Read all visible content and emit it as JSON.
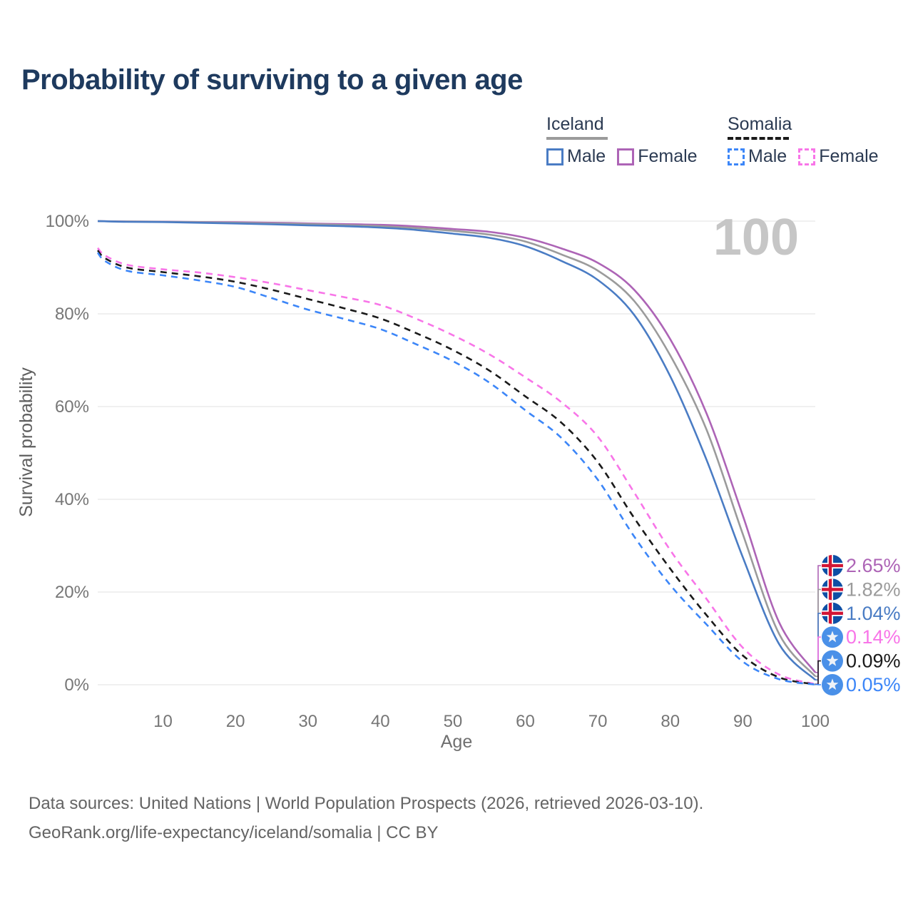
{
  "title": "Probability of surviving to a given age",
  "watermark": "100",
  "legend": {
    "groups": [
      {
        "country": "Iceland",
        "line_style": "solid",
        "underline_color": "#9b9b9b",
        "items": [
          {
            "label": "Male",
            "color": "#4a7cc4",
            "dashed": false
          },
          {
            "label": "Female",
            "color": "#ad64b6",
            "dashed": false
          }
        ]
      },
      {
        "country": "Somalia",
        "line_style": "dashed",
        "underline_color": "#1a1a1a",
        "items": [
          {
            "label": "Male",
            "color": "#3c86f8",
            "dashed": true
          },
          {
            "label": "Female",
            "color": "#f875e8",
            "dashed": true
          }
        ]
      }
    ]
  },
  "chart_data": {
    "type": "line",
    "title": "Probability of surviving to a given age",
    "xlabel": "Age",
    "ylabel": "Survival probability",
    "xlim": [
      1,
      100
    ],
    "ylim": [
      0,
      100
    ],
    "grid": "horizontal",
    "legend_position": "top-right",
    "x_ticks": [
      10,
      20,
      30,
      40,
      50,
      60,
      70,
      80,
      90,
      100
    ],
    "y_ticks": [
      {
        "label": "0%",
        "value": 0
      },
      {
        "label": "20%",
        "value": 20
      },
      {
        "label": "40%",
        "value": 40
      },
      {
        "label": "60%",
        "value": 60
      },
      {
        "label": "80%",
        "value": 80
      },
      {
        "label": "100%",
        "value": 100
      }
    ],
    "series": [
      {
        "name": "Iceland Female",
        "country": "Iceland",
        "sex": "Female",
        "color": "#ad64b6",
        "dashed": false,
        "flag": "iceland",
        "end_label": "2.65%",
        "points": [
          [
            1,
            100
          ],
          [
            5,
            99.92
          ],
          [
            10,
            99.88
          ],
          [
            15,
            99.8
          ],
          [
            20,
            99.75
          ],
          [
            25,
            99.65
          ],
          [
            30,
            99.5
          ],
          [
            35,
            99.35
          ],
          [
            40,
            99.2
          ],
          [
            45,
            98.85
          ],
          [
            50,
            98.3
          ],
          [
            55,
            97.7
          ],
          [
            60,
            96.4
          ],
          [
            65,
            94.1
          ],
          [
            70,
            91.0
          ],
          [
            75,
            85.2
          ],
          [
            80,
            74.5
          ],
          [
            85,
            58.5
          ],
          [
            90,
            36.5
          ],
          [
            95,
            13.5
          ],
          [
            100,
            2.65
          ]
        ]
      },
      {
        "name": "Iceland Both sexes",
        "country": "Iceland",
        "sex": "Both",
        "color": "#9b9b9b",
        "dashed": false,
        "flag": "iceland",
        "end_label": "1.82%",
        "points": [
          [
            1,
            100
          ],
          [
            5,
            99.9
          ],
          [
            10,
            99.85
          ],
          [
            15,
            99.75
          ],
          [
            20,
            99.65
          ],
          [
            25,
            99.5
          ],
          [
            30,
            99.35
          ],
          [
            35,
            99.15
          ],
          [
            40,
            98.9
          ],
          [
            45,
            98.5
          ],
          [
            50,
            97.9
          ],
          [
            55,
            97.1
          ],
          [
            60,
            95.6
          ],
          [
            65,
            92.8
          ],
          [
            70,
            89.3
          ],
          [
            75,
            82.8
          ],
          [
            80,
            71.0
          ],
          [
            85,
            55.0
          ],
          [
            90,
            32.5
          ],
          [
            95,
            11.0
          ],
          [
            100,
            1.82
          ]
        ]
      },
      {
        "name": "Iceland Male",
        "country": "Iceland",
        "sex": "Male",
        "color": "#4a7cc4",
        "dashed": false,
        "flag": "iceland",
        "end_label": "1.04%",
        "points": [
          [
            1,
            100
          ],
          [
            5,
            99.85
          ],
          [
            10,
            99.8
          ],
          [
            15,
            99.65
          ],
          [
            20,
            99.5
          ],
          [
            25,
            99.3
          ],
          [
            30,
            99.1
          ],
          [
            35,
            98.9
          ],
          [
            40,
            98.6
          ],
          [
            45,
            98.1
          ],
          [
            50,
            97.3
          ],
          [
            55,
            96.4
          ],
          [
            60,
            94.6
          ],
          [
            65,
            91.4
          ],
          [
            70,
            87.3
          ],
          [
            75,
            79.8
          ],
          [
            80,
            66.5
          ],
          [
            85,
            48.5
          ],
          [
            90,
            27.5
          ],
          [
            95,
            8.8
          ],
          [
            100,
            1.04
          ]
        ]
      },
      {
        "name": "Somalia Female",
        "country": "Somalia",
        "sex": "Female",
        "color": "#f875e8",
        "dashed": true,
        "flag": "somalia",
        "end_label": "0.14%",
        "points": [
          [
            1,
            94.2
          ],
          [
            2,
            92.6
          ],
          [
            5,
            90.6
          ],
          [
            10,
            89.6
          ],
          [
            15,
            88.9
          ],
          [
            20,
            87.9
          ],
          [
            25,
            86.6
          ],
          [
            30,
            85.1
          ],
          [
            35,
            83.6
          ],
          [
            40,
            81.9
          ],
          [
            45,
            78.9
          ],
          [
            50,
            75.4
          ],
          [
            55,
            71.3
          ],
          [
            60,
            66.3
          ],
          [
            65,
            60.9
          ],
          [
            70,
            53.5
          ],
          [
            75,
            41.5
          ],
          [
            80,
            29.0
          ],
          [
            85,
            18.5
          ],
          [
            90,
            8.0
          ],
          [
            95,
            2.2
          ],
          [
            100,
            0.14
          ]
        ]
      },
      {
        "name": "Somalia Both sexes",
        "country": "Somalia",
        "sex": "Both",
        "color": "#1a1a1a",
        "dashed": true,
        "flag": "somalia",
        "end_label": "0.09%",
        "points": [
          [
            1,
            93.7
          ],
          [
            2,
            92.0
          ],
          [
            5,
            90.0
          ],
          [
            10,
            89.0
          ],
          [
            15,
            88.1
          ],
          [
            20,
            86.9
          ],
          [
            25,
            85.2
          ],
          [
            30,
            83.2
          ],
          [
            35,
            81.2
          ],
          [
            40,
            79.0
          ],
          [
            45,
            75.8
          ],
          [
            50,
            72.2
          ],
          [
            55,
            67.8
          ],
          [
            60,
            62.2
          ],
          [
            65,
            56.5
          ],
          [
            70,
            48.0
          ],
          [
            75,
            36.0
          ],
          [
            80,
            25.0
          ],
          [
            85,
            15.0
          ],
          [
            90,
            6.3
          ],
          [
            95,
            1.6
          ],
          [
            100,
            0.09
          ]
        ]
      },
      {
        "name": "Somalia Male",
        "country": "Somalia",
        "sex": "Male",
        "color": "#3c86f8",
        "dashed": true,
        "flag": "somalia",
        "end_label": "0.05%",
        "points": [
          [
            1,
            93.2
          ],
          [
            2,
            91.4
          ],
          [
            5,
            89.3
          ],
          [
            10,
            88.3
          ],
          [
            15,
            87.2
          ],
          [
            20,
            85.8
          ],
          [
            25,
            83.4
          ],
          [
            30,
            80.9
          ],
          [
            35,
            78.9
          ],
          [
            40,
            76.7
          ],
          [
            45,
            73.4
          ],
          [
            50,
            69.8
          ],
          [
            55,
            65.2
          ],
          [
            60,
            59.2
          ],
          [
            65,
            53.2
          ],
          [
            70,
            44.2
          ],
          [
            75,
            32.0
          ],
          [
            80,
            21.5
          ],
          [
            85,
            13.0
          ],
          [
            90,
            5.0
          ],
          [
            95,
            1.2
          ],
          [
            100,
            0.05
          ]
        ]
      }
    ]
  },
  "footer": {
    "line1": "Data sources: United Nations | World Population Prospects (2026, retrieved 2026-03-10).",
    "line2": "GeoRank.org/life-expectancy/iceland/somalia | CC BY"
  }
}
